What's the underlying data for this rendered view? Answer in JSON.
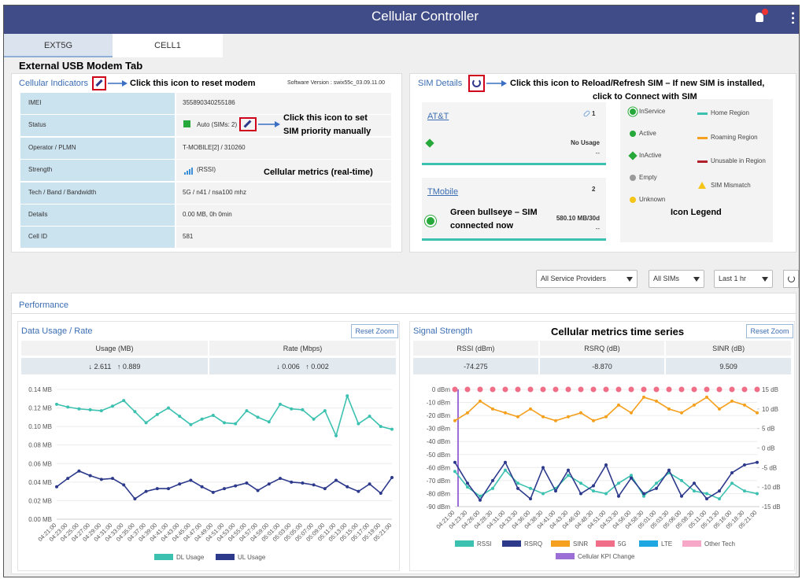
{
  "header": {
    "title": "Cellular Controller"
  },
  "tabs": [
    "EXT5G",
    "CELL1"
  ],
  "annotations": {
    "usb_tab": "External USB Modem Tab",
    "reset_modem": "Click this icon to reset modem",
    "sim_priority": [
      "Click this icon to set",
      "SIM priority manually"
    ],
    "metrics_realtime": "Cellular metrics (real-time)",
    "reload_sim": [
      "Click this icon to Reload/Refresh SIM – If new SIM is installed,",
      "click to Connect with SIM"
    ],
    "bullseye": [
      "Green bullseye – SIM",
      "connected now"
    ],
    "icon_legend": "Icon Legend",
    "timeseries": "Cellular metrics time series"
  },
  "cellular_indicators": {
    "title": "Cellular Indicators",
    "software_version": "Software Version :  swix55c_03.09.11.00",
    "rows": [
      [
        "IMEI",
        "355890340255186"
      ],
      [
        "Status",
        "Auto (SIMs: 2)"
      ],
      [
        "Operator / PLMN",
        "T-MOBILE[2] / 310260"
      ],
      [
        "Strength",
        "(RSSI)"
      ],
      [
        "Tech / Band / Bandwidth",
        "5G / n41 / nsa100 mhz"
      ],
      [
        "Details",
        "0.00 MB, 0h 0min"
      ],
      [
        "Cell ID",
        "581"
      ]
    ]
  },
  "sim_details": {
    "title": "SIM Details",
    "cards": [
      {
        "name": "AT&T",
        "slot": "1",
        "usage": "No Usage",
        "sub": "--"
      },
      {
        "name": "TMobile",
        "slot": "2",
        "usage": "580.10 MB/30d",
        "sub": "--"
      }
    ],
    "legend_status": [
      "InService",
      "Active",
      "InActive",
      "Empty",
      "Unknown"
    ],
    "legend_region": [
      "Home Region",
      "Roaming Region",
      "Unusable in Region",
      "SIM Mismatch"
    ]
  },
  "filters": [
    "All Service Providers",
    "All SIMs",
    "Last 1 hr"
  ],
  "performance": {
    "title": "Performance",
    "reset_zoom": "Reset Zoom"
  },
  "chart_data": [
    {
      "type": "line",
      "title": "Data Usage / Rate",
      "summary": {
        "headers": [
          "Usage (MB)",
          "Rate (Mbps)"
        ],
        "cells": [
          [
            "↓ 2.611   ↑ 0.889",
            "↓ 0.006   ↑ 0.002"
          ]
        ]
      },
      "categories": [
        "04:21:00",
        "04:23:00",
        "04:25:00",
        "04:27:00",
        "04:29:00",
        "04:31:00",
        "04:33:00",
        "04:35:00",
        "04:37:00",
        "04:39:00",
        "04:41:00",
        "04:43:00",
        "04:45:00",
        "04:47:00",
        "04:49:00",
        "04:51:00",
        "04:53:00",
        "04:55:00",
        "04:57:00",
        "04:59:00",
        "05:01:00",
        "05:03:00",
        "05:05:00",
        "05:07:00",
        "05:09:00",
        "05:11:00",
        "05:13:00",
        "05:15:00",
        "05:17:00",
        "05:19:00",
        "05:21:00"
      ],
      "series": [
        {
          "name": "DL Usage",
          "color": "#3cc1b0",
          "values": [
            0.124,
            0.121,
            0.119,
            0.118,
            0.117,
            0.122,
            0.128,
            0.116,
            0.104,
            0.113,
            0.12,
            0.111,
            0.102,
            0.108,
            0.112,
            0.104,
            0.103,
            0.117,
            0.11,
            0.105,
            0.124,
            0.119,
            0.118,
            0.108,
            0.117,
            0.09,
            0.133,
            0.103,
            0.111,
            0.1,
            0.097
          ]
        },
        {
          "name": "UL Usage",
          "color": "#2d3a8c",
          "values": [
            0.035,
            0.044,
            0.052,
            0.047,
            0.043,
            0.044,
            0.037,
            0.022,
            0.03,
            0.033,
            0.033,
            0.038,
            0.042,
            0.035,
            0.029,
            0.033,
            0.036,
            0.039,
            0.031,
            0.038,
            0.044,
            0.04,
            0.039,
            0.037,
            0.033,
            0.042,
            0.035,
            0.03,
            0.038,
            0.028,
            0.045
          ]
        }
      ],
      "ylim": [
        0,
        0.14
      ],
      "yticks": [
        {
          "value": 0,
          "label": "0.00 MB"
        },
        {
          "value": 0.02,
          "label": "0.02 MB"
        },
        {
          "value": 0.04,
          "label": "0.04 MB"
        },
        {
          "value": 0.06,
          "label": "0.06 MB"
        },
        {
          "value": 0.08,
          "label": "0.08 MB"
        },
        {
          "value": 0.1,
          "label": "0.10 MB"
        },
        {
          "value": 0.12,
          "label": "0.12 MB"
        },
        {
          "value": 0.14,
          "label": "0.14 MB"
        }
      ],
      "grid": true
    },
    {
      "type": "line",
      "title": "Signal Strength",
      "summary": {
        "headers": [
          "RSSI (dBm)",
          "RSRQ (dB)",
          "SINR (dB)"
        ],
        "cells": [
          [
            "-74.275",
            "-8.870",
            "9.509"
          ]
        ]
      },
      "categories": [
        "04:21:00",
        "04:23:30",
        "04:26:00",
        "04:28:30",
        "04:31:00",
        "04:33:30",
        "04:36:00",
        "04:38:30",
        "04:41:00",
        "04:43:30",
        "04:46:00",
        "04:48:30",
        "04:51:00",
        "04:53:30",
        "04:56:00",
        "04:58:30",
        "05:01:00",
        "05:03:30",
        "05:06:00",
        "05:08:30",
        "05:11:00",
        "05:13:30",
        "05:16:00",
        "05:18:30",
        "05:21:00"
      ],
      "series": [
        {
          "name": "RSSI",
          "color": "#3cc1b0",
          "values": [
            -63,
            -75,
            -82,
            -76,
            -62,
            -72,
            -76,
            -80,
            -76,
            -66,
            -72,
            -78,
            -80,
            -72,
            -66,
            -82,
            -72,
            -64,
            -70,
            -78,
            -80,
            -84,
            -72,
            -78,
            -80
          ]
        },
        {
          "name": "RSRQ",
          "color": "#2d3a8c",
          "values": [
            -56,
            -72,
            -85,
            -70,
            -56,
            -76,
            -84,
            -60,
            -78,
            -62,
            -80,
            -74,
            -58,
            -82,
            -68,
            -80,
            -76,
            -62,
            -82,
            -72,
            -84,
            -78,
            -64,
            -58,
            -56
          ]
        },
        {
          "name": "SINR",
          "color": "#f5a01e",
          "axis": "y2",
          "values": [
            7,
            9,
            12,
            10,
            9,
            8,
            10,
            8,
            7,
            8,
            9,
            7,
            8,
            11,
            9,
            13,
            12,
            10,
            9,
            11,
            13,
            10,
            12,
            11,
            9
          ]
        },
        {
          "name": "5G",
          "color": "#f06e87",
          "line": false,
          "values": [
            0,
            0,
            0,
            0,
            0,
            0,
            0,
            0,
            0,
            0,
            0,
            0,
            0,
            0,
            0,
            0,
            0,
            0,
            0,
            0,
            0,
            0,
            0,
            0,
            0
          ]
        },
        {
          "name": "LTE",
          "color": "#1ea7e1",
          "values": [
            null,
            null,
            null,
            null,
            null,
            null,
            null,
            null,
            null,
            null,
            null,
            null,
            null,
            null,
            null,
            null,
            null,
            null,
            null,
            null,
            null,
            null,
            null,
            null,
            null
          ]
        },
        {
          "name": "Other Tech",
          "color": "#f7a8c8",
          "values": [
            null,
            null,
            null,
            null,
            null,
            null,
            null,
            null,
            null,
            null,
            null,
            null,
            null,
            null,
            null,
            null,
            null,
            null,
            null,
            null,
            null,
            null,
            null,
            null,
            null
          ]
        }
      ],
      "kpi_change": {
        "name": "Cellular KPI Change",
        "color": "#9b6fd6",
        "at": "04:21:00"
      },
      "ylim": [
        -90,
        0
      ],
      "yticks": [
        {
          "value": 0,
          "label": "0 dBm"
        },
        {
          "value": -10,
          "label": "-10 dBm"
        },
        {
          "value": -20,
          "label": "-20 dBm"
        },
        {
          "value": -30,
          "label": "-30 dBm"
        },
        {
          "value": -40,
          "label": "-40 dBm"
        },
        {
          "value": -50,
          "label": "-50 dBm"
        },
        {
          "value": -60,
          "label": "-60 dBm"
        },
        {
          "value": -70,
          "label": "-70 dBm"
        },
        {
          "value": -80,
          "label": "-80 dBm"
        },
        {
          "value": -90,
          "label": "-90 dBm"
        }
      ],
      "y2lim": [
        -15,
        15
      ],
      "y2ticks": [
        {
          "value": 15,
          "label": "15 dB"
        },
        {
          "value": 10,
          "label": "10 dB"
        },
        {
          "value": 5,
          "label": "5 dB"
        },
        {
          "value": 0,
          "label": "0 dB"
        },
        {
          "value": -5,
          "label": "-5 dB"
        },
        {
          "value": -10,
          "label": "-10 dB"
        },
        {
          "value": -15,
          "label": "-15 dB"
        }
      ],
      "grid": true
    }
  ]
}
